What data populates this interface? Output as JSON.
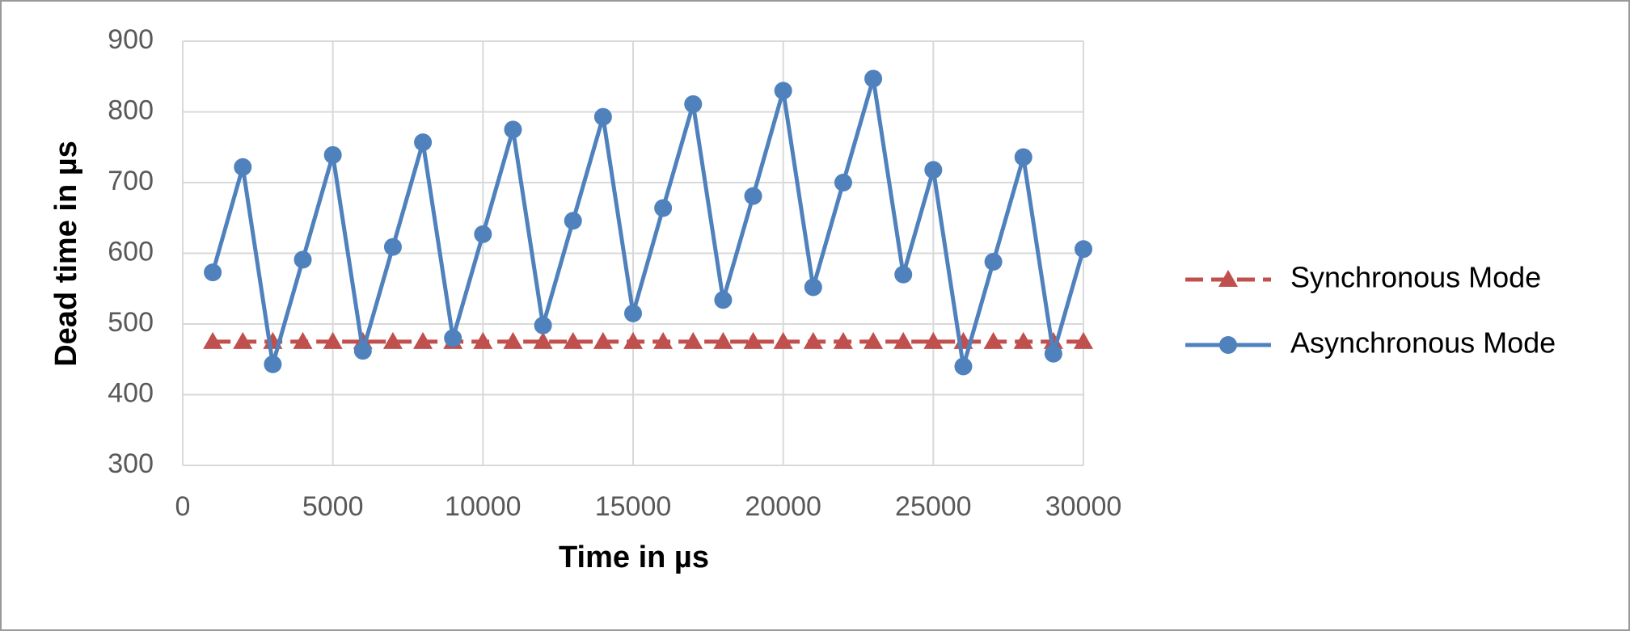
{
  "chart_data": {
    "type": "line",
    "x_label": "Time in µs",
    "y_label": "Dead time in µs",
    "x": [
      1000,
      2000,
      3000,
      4000,
      5000,
      6000,
      7000,
      8000,
      9000,
      10000,
      11000,
      12000,
      13000,
      14000,
      15000,
      16000,
      17000,
      18000,
      19000,
      20000,
      21000,
      22000,
      23000,
      24000,
      25000,
      26000,
      27000,
      28000,
      29000,
      30000
    ],
    "series": [
      {
        "name": "Synchronous Mode",
        "color": "#c0504d",
        "marker": "triangle",
        "dash": true,
        "values": [
          475,
          475,
          475,
          475,
          475,
          475,
          475,
          475,
          475,
          475,
          475,
          475,
          475,
          475,
          475,
          475,
          475,
          475,
          475,
          475,
          475,
          475,
          475,
          475,
          475,
          475,
          475,
          475,
          475,
          475
        ]
      },
      {
        "name": "Asynchronous Mode",
        "color": "#4f81bd",
        "marker": "circle",
        "dash": false,
        "values": [
          573,
          722,
          443,
          591,
          739,
          462,
          609,
          757,
          480,
          627,
          775,
          498,
          646,
          793,
          515,
          664,
          811,
          534,
          681,
          830,
          552,
          700,
          847,
          570,
          718,
          440,
          588,
          736,
          458,
          606
        ]
      }
    ],
    "xlim": [
      0,
      30000
    ],
    "xticks": [
      0,
      5000,
      10000,
      15000,
      20000,
      25000,
      30000
    ],
    "ylim": [
      300,
      900
    ],
    "yticks": [
      300,
      400,
      500,
      600,
      700,
      800,
      900
    ],
    "grid": true,
    "legend": "right"
  }
}
